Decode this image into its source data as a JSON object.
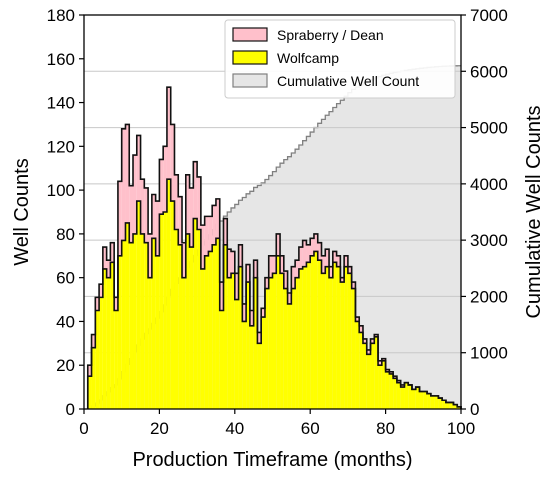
{
  "chart_data": {
    "type": "histogram",
    "title": "",
    "xlabel": "Production Timeframe (months)",
    "ylabel": "Well Counts",
    "y2label": "Cumulative Well Counts",
    "xlim": [
      0,
      100
    ],
    "ylim": [
      0,
      180
    ],
    "y2lim": [
      0,
      7000
    ],
    "x_ticks": [
      "0",
      "20",
      "40",
      "60",
      "80",
      "100"
    ],
    "y_ticks": [
      "0",
      "20",
      "40",
      "60",
      "80",
      "100",
      "120",
      "140",
      "160",
      "180"
    ],
    "y2_ticks": [
      "0",
      "1000",
      "2000",
      "3000",
      "4000",
      "5000",
      "6000",
      "7000"
    ],
    "bin_width": 1,
    "x_start": 1,
    "stacked": true,
    "legend_position": "top-right",
    "series": [
      {
        "name": "Wolfcamp",
        "color": "#ffff00",
        "values": [
          15,
          28,
          45,
          51,
          64,
          60,
          67,
          45,
          70,
          77,
          85,
          76,
          80,
          95,
          80,
          76,
          60,
          78,
          70,
          89,
          90,
          105,
          95,
          82,
          75,
          60,
          80,
          74,
          87,
          82,
          64,
          70,
          72,
          75,
          78,
          45,
          75,
          60,
          62,
          50,
          65,
          40,
          58,
          38,
          60,
          30,
          42,
          55,
          60,
          62,
          70,
          62,
          55,
          48,
          55,
          60,
          64,
          65,
          67,
          70,
          72,
          68,
          62,
          65,
          60,
          67,
          65,
          58,
          65,
          62,
          55,
          40,
          35,
          30,
          25,
          30,
          33,
          20,
          22,
          17,
          16,
          14,
          12,
          10,
          12,
          11,
          9,
          10,
          8,
          8,
          7,
          6,
          6,
          5,
          4,
          3,
          3,
          2,
          1
        ]
      },
      {
        "name": "Spraberry / Dean",
        "color": "#ffc0cb",
        "values": [
          5,
          6,
          6,
          6,
          10,
          8,
          9,
          6,
          34,
          51,
          45,
          26,
          36,
          30,
          25,
          25,
          20,
          20,
          25,
          25,
          30,
          42,
          35,
          25,
          22,
          16,
          27,
          27,
          26,
          24,
          20,
          18,
          16,
          18,
          18,
          13,
          12,
          13,
          10,
          12,
          10,
          8,
          8,
          7,
          8,
          5,
          4,
          5,
          10,
          8,
          10,
          8,
          8,
          5,
          10,
          8,
          10,
          12,
          8,
          8,
          8,
          8,
          8,
          8,
          5,
          5,
          5,
          2,
          5,
          3,
          3,
          2,
          3,
          2,
          2,
          2,
          1,
          2,
          1,
          1,
          1,
          1,
          1,
          1,
          0,
          0,
          0,
          0,
          0,
          0,
          0,
          0,
          0,
          0,
          0,
          0,
          0,
          0,
          0
        ]
      },
      {
        "name": "Cumulative Well Count",
        "color": "#e6e6e6",
        "axis": "right",
        "description": "running total of Wolfcamp + Spraberry / Dean well counts"
      }
    ]
  }
}
